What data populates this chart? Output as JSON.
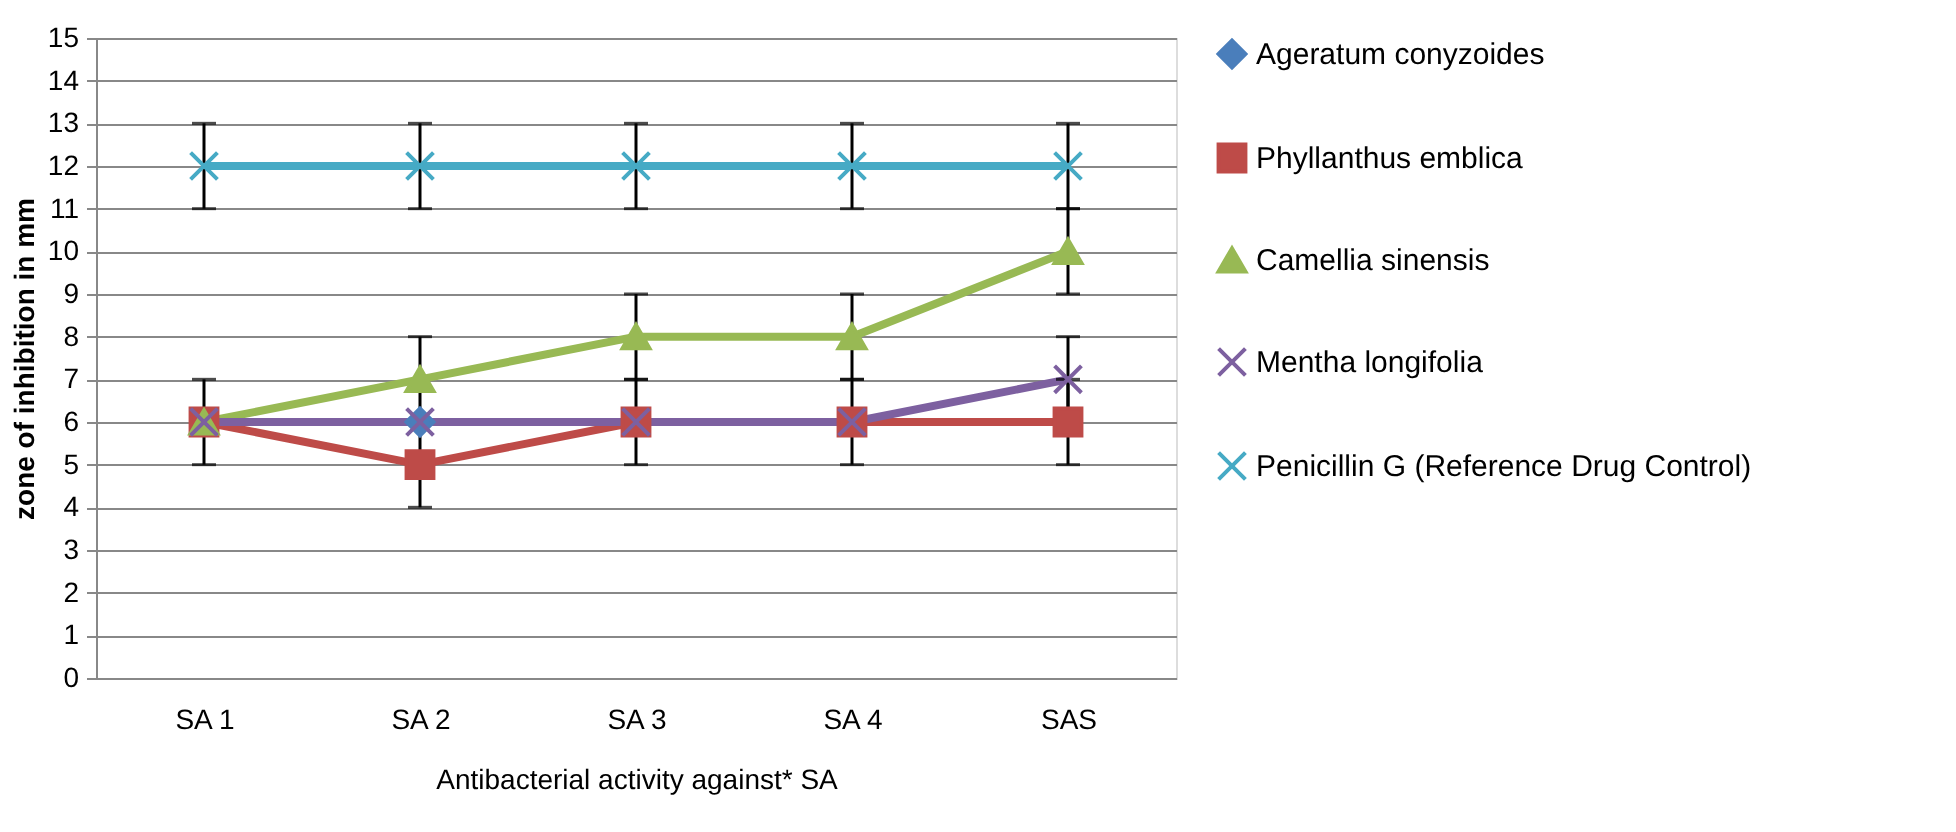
{
  "chart_data": {
    "type": "line",
    "xlabel": "Antibacterial activity against* SA",
    "ylabel": "zone  of inhibition in mm",
    "categories": [
      "SA 1",
      "SA 2",
      "SA 3",
      "SA 4",
      "SAS"
    ],
    "series": [
      {
        "name": "Ageratum conyzoides",
        "color": "#4a7ebb",
        "marker": "diamond",
        "values": [
          null,
          6,
          null,
          null,
          null
        ]
      },
      {
        "name": "Phyllanthus  emblica",
        "color": "#be4b48",
        "marker": "square",
        "values": [
          6,
          5,
          6,
          6,
          6
        ],
        "errors": [
          1,
          1,
          1,
          1,
          1
        ]
      },
      {
        "name": "Camellia sinensis",
        "color": "#98b954",
        "marker": "triangle",
        "values": [
          6,
          7,
          8,
          8,
          10
        ],
        "errors": [
          null,
          1,
          1,
          1,
          1
        ]
      },
      {
        "name": "Mentha longifolia",
        "color": "#7d60a0",
        "marker": "cross",
        "values": [
          6,
          6,
          6,
          6,
          7
        ],
        "errors": [
          null,
          null,
          null,
          null,
          1
        ]
      },
      {
        "name": "Penicillin G (Reference Drug Control)",
        "color": "#46aac5",
        "marker": "cross",
        "values": [
          12,
          12,
          12,
          12,
          12
        ],
        "errors": [
          1,
          1,
          1,
          1,
          1
        ]
      }
    ],
    "ylim": [
      0,
      15
    ],
    "yticks": [
      0,
      1,
      2,
      3,
      4,
      5,
      6,
      7,
      8,
      9,
      10,
      11,
      12,
      13,
      14,
      15
    ],
    "grid": "y",
    "legend": "right",
    "line_style": "solid"
  }
}
